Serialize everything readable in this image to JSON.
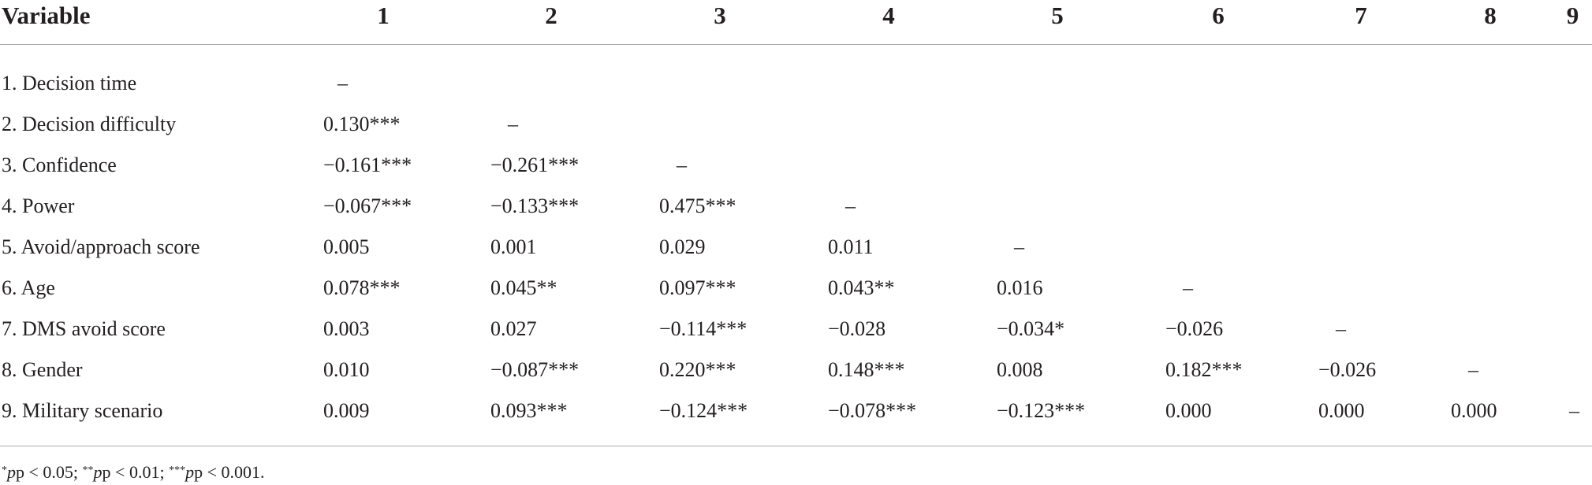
{
  "table": {
    "header": {
      "variable_label": "Variable",
      "columns": [
        "1",
        "2",
        "3",
        "4",
        "5",
        "6",
        "7",
        "8",
        "9"
      ]
    },
    "rows": [
      {
        "label": "1. Decision time",
        "values": [
          "–"
        ]
      },
      {
        "label": "2. Decision difficulty",
        "values": [
          "0.130***",
          "–"
        ]
      },
      {
        "label": "3. Confidence",
        "values": [
          "−0.161***",
          "−0.261***",
          "–"
        ]
      },
      {
        "label": "4. Power",
        "values": [
          "−0.067***",
          "−0.133***",
          "0.475***",
          "–"
        ]
      },
      {
        "label": "5. Avoid/approach score",
        "values": [
          "0.005",
          "0.001",
          "0.029",
          "0.011",
          "–"
        ]
      },
      {
        "label": "6. Age",
        "values": [
          "0.078***",
          "0.045**",
          "0.097***",
          "0.043**",
          "0.016",
          "–"
        ]
      },
      {
        "label": "7. DMS avoid score",
        "values": [
          "0.003",
          "0.027",
          "−0.114***",
          "−0.028",
          "−0.034*",
          "−0.026",
          "–"
        ]
      },
      {
        "label": "8. Gender",
        "values": [
          "0.010",
          "−0.087***",
          "0.220***",
          "0.148***",
          "0.008",
          "0.182***",
          "−0.026",
          "–"
        ]
      },
      {
        "label": "9. Military scenario",
        "values": [
          "0.009",
          "0.093***",
          "−0.124***",
          "−0.078***",
          "−0.123***",
          "0.000",
          "0.000",
          "0.000",
          "–"
        ]
      }
    ]
  },
  "footnote": {
    "p1_star": "*",
    "p1_text": "p < 0.05; ",
    "p2_star": "**",
    "p2_text": "p < 0.01; ",
    "p3_star": "***",
    "p3_text": "p < 0.001."
  }
}
